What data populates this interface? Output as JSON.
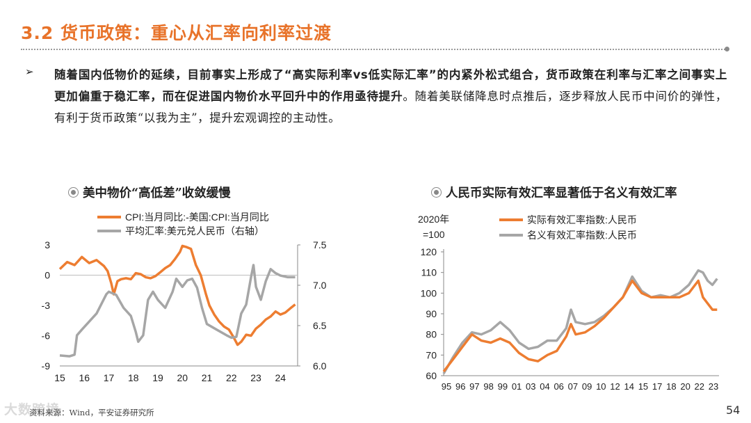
{
  "header": {
    "title": "3.2 货币政策：重心从汇率向利率过渡"
  },
  "bullet": {
    "mark": "➢",
    "part1": "随着国内低物价的延续，目前事实上形成了“高实际利率",
    "vs": "vs",
    "part2": "低实际汇率”的内紧外松式组合，货币政策在利率与汇率之间事实上更加偏重于稳汇率，而在促进国内物价水平回升中的作用亟待提升",
    "part3": "。随着美联储降息时点推后，逐步释放人民币中间价的弹性，有利于货币政策“以我为主”，提升宏观调控的主动性。"
  },
  "colors": {
    "title": "#e8732a",
    "orange": "#ed7d31",
    "gray": "#a6a6a6"
  },
  "chart_data": [
    {
      "type": "line",
      "title": "美中物价“高低差”收敛缓慢",
      "icon": "circle-dot-icon",
      "x_ticks": [
        "15",
        "16",
        "17",
        "18",
        "19",
        "20",
        "21",
        "22",
        "23",
        "24"
      ],
      "x_range": [
        2015.0,
        2024.7
      ],
      "ylim_left": [
        -9,
        3
      ],
      "y_ticks_left": [
        "3",
        "0",
        "-3",
        "-6",
        "-9"
      ],
      "ylim_right": [
        6.0,
        7.5
      ],
      "y_ticks_right": [
        "7.5",
        "7.0",
        "6.5",
        "6.0"
      ],
      "series": [
        {
          "name": "CPI:当月同比:-美国:CPI:当月同比",
          "axis": "left",
          "color": "#ed7d31",
          "x": [
            2015.0,
            2015.3,
            2015.6,
            2015.9,
            2016.2,
            2016.5,
            2016.8,
            2016.95,
            2017.1,
            2017.2,
            2017.35,
            2017.5,
            2017.7,
            2017.9,
            2018.1,
            2018.3,
            2018.5,
            2018.7,
            2018.9,
            2019.1,
            2019.3,
            2019.5,
            2019.7,
            2019.9,
            2020.0,
            2020.15,
            2020.35,
            2020.55,
            2020.75,
            2020.95,
            2021.1,
            2021.3,
            2021.5,
            2021.7,
            2021.9,
            2022.1,
            2022.25,
            2022.4,
            2022.6,
            2022.8,
            2023.0,
            2023.2,
            2023.4,
            2023.6,
            2023.8,
            2024.0,
            2024.2,
            2024.4,
            2024.6
          ],
          "y": [
            0.6,
            1.3,
            1.0,
            1.8,
            1.2,
            1.5,
            0.9,
            0.4,
            -0.8,
            -1.9,
            -0.6,
            -0.4,
            -0.3,
            -0.4,
            0.2,
            0.1,
            -0.2,
            -0.3,
            -0.1,
            0.3,
            0.7,
            1.0,
            1.6,
            2.3,
            2.9,
            2.8,
            2.6,
            1.0,
            0.0,
            -1.8,
            -3.0,
            -3.9,
            -4.6,
            -5.1,
            -5.4,
            -6.2,
            -6.9,
            -6.6,
            -5.9,
            -6.0,
            -5.3,
            -4.9,
            -4.4,
            -4.1,
            -3.6,
            -3.9,
            -3.7,
            -3.3,
            -2.9
          ]
        },
        {
          "name": "平均汇率:美元兑人民币（右轴）",
          "axis": "right",
          "color": "#a6a6a6",
          "x": [
            2015.0,
            2015.4,
            2015.6,
            2015.7,
            2015.9,
            2016.2,
            2016.5,
            2016.9,
            2017.0,
            2017.3,
            2017.6,
            2017.9,
            2018.1,
            2018.2,
            2018.4,
            2018.6,
            2018.8,
            2019.0,
            2019.3,
            2019.6,
            2019.75,
            2020.0,
            2020.2,
            2020.4,
            2020.6,
            2020.8,
            2021.0,
            2021.4,
            2021.8,
            2022.0,
            2022.2,
            2022.4,
            2022.6,
            2022.8,
            2022.9,
            2023.0,
            2023.2,
            2023.4,
            2023.6,
            2023.8,
            2024.0,
            2024.3,
            2024.6
          ],
          "y": [
            6.13,
            6.12,
            6.14,
            6.38,
            6.45,
            6.55,
            6.65,
            6.89,
            6.92,
            6.88,
            6.72,
            6.62,
            6.42,
            6.3,
            6.38,
            6.82,
            6.92,
            6.82,
            6.72,
            6.92,
            7.08,
            6.98,
            7.06,
            7.08,
            6.97,
            6.72,
            6.52,
            6.45,
            6.38,
            6.35,
            6.36,
            6.65,
            6.76,
            7.1,
            7.25,
            6.98,
            6.82,
            7.05,
            7.2,
            7.15,
            7.12,
            7.1,
            7.1
          ]
        }
      ]
    },
    {
      "type": "line",
      "title": "人民币实际有效汇率显著低于名义有效汇率",
      "icon": "circle-dot-icon",
      "y_unit_label_1": "2020年",
      "y_unit_label_2": "=100",
      "x_ticks": [
        "95",
        "96",
        "97",
        "98",
        "99",
        "01",
        "03",
        "04",
        "06",
        "07",
        "09",
        "10",
        "12",
        "14",
        "15",
        "17",
        "18",
        "20",
        "22",
        "23"
      ],
      "x_range": [
        1995.0,
        2024.2
      ],
      "ylim": [
        60,
        120
      ],
      "y_ticks": [
        "120",
        "110",
        "100",
        "90",
        "80",
        "70",
        "60"
      ],
      "series": [
        {
          "name": "实际有效汇率指数:人民币",
          "color": "#ed7d31",
          "x": [
            1995.0,
            1996.0,
            1997.0,
            1998.0,
            1999.0,
            2000.0,
            2001.0,
            2002.0,
            2003.0,
            2004.0,
            2005.0,
            2006.0,
            2007.0,
            2008.0,
            2008.5,
            2009.0,
            2010.0,
            2011.0,
            2012.0,
            2013.0,
            2014.0,
            2015.0,
            2016.0,
            2017.0,
            2018.0,
            2019.0,
            2020.0,
            2021.0,
            2022.0,
            2022.5,
            2023.0,
            2023.5,
            2024.0
          ],
          "y": [
            62,
            68,
            74,
            80,
            77,
            76,
            78,
            76,
            71,
            68,
            67,
            70,
            72,
            79,
            85,
            80,
            81,
            84,
            88,
            93,
            98,
            106,
            100,
            98,
            98,
            98,
            98,
            100,
            106,
            98,
            95,
            92,
            92
          ]
        },
        {
          "name": "名义有效汇率指数:人民币",
          "color": "#a6a6a6",
          "x": [
            1995.0,
            1996.0,
            1997.0,
            1998.0,
            1999.0,
            2000.0,
            2001.0,
            2002.0,
            2003.0,
            2004.0,
            2005.0,
            2006.0,
            2007.0,
            2008.0,
            2008.5,
            2009.0,
            2010.0,
            2011.0,
            2012.0,
            2013.0,
            2014.0,
            2015.0,
            2016.0,
            2017.0,
            2018.0,
            2019.0,
            2020.0,
            2021.0,
            2022.0,
            2022.5,
            2023.0,
            2023.5,
            2024.0
          ],
          "y": [
            61,
            69,
            76,
            81,
            80,
            82,
            86,
            82,
            76,
            73,
            74,
            77,
            77,
            83,
            92,
            86,
            85,
            86,
            89,
            93,
            98,
            108,
            101,
            98,
            99,
            98,
            100,
            104,
            111,
            110,
            106,
            104,
            107
          ]
        }
      ]
    }
  ],
  "footer": {
    "source": "资料来源：Wind，平安证券研究所",
    "watermark": "大数跨境",
    "page": "54"
  }
}
